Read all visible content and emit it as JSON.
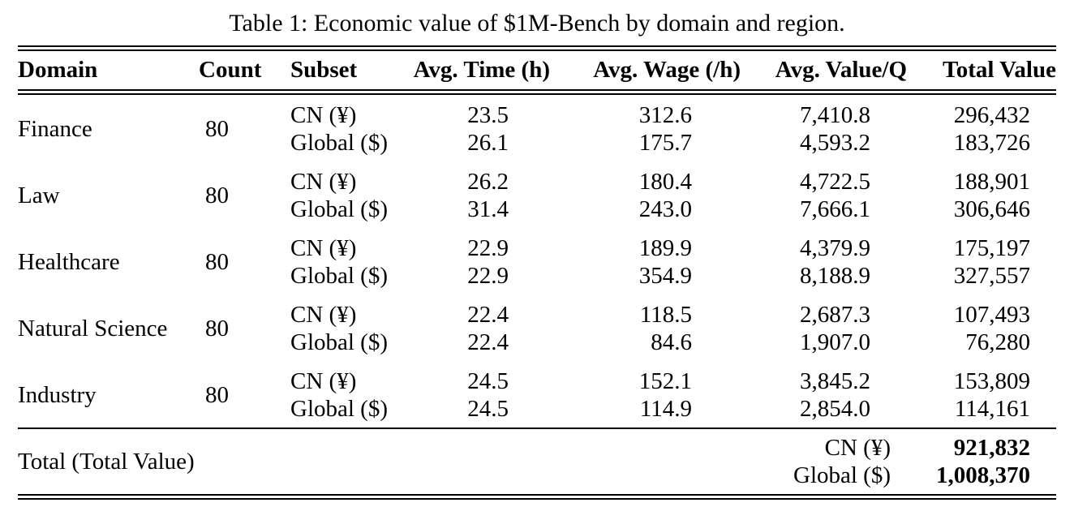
{
  "colors": {
    "text": "#000000",
    "background": "#ffffff",
    "rule": "#000000"
  },
  "title": "Table 1: Economic value of $1M-Bench by domain and region.",
  "columns": [
    "Domain",
    "Count",
    "Subset",
    "Avg. Time (h)",
    "Avg. Wage (/h)",
    "Avg. Value/Q",
    "Total Value"
  ],
  "domains": [
    {
      "name": "Finance",
      "count": "80",
      "subsets": [
        {
          "subset": "CN (¥)",
          "time": "23.5",
          "wage": "312.6",
          "value_q": "7,410.8",
          "total": "296,432"
        },
        {
          "subset": "Global ($)",
          "time": "26.1",
          "wage": "175.7",
          "value_q": "4,593.2",
          "total": "183,726"
        }
      ]
    },
    {
      "name": "Law",
      "count": "80",
      "subsets": [
        {
          "subset": "CN (¥)",
          "time": "26.2",
          "wage": "180.4",
          "value_q": "4,722.5",
          "total": "188,901"
        },
        {
          "subset": "Global ($)",
          "time": "31.4",
          "wage": "243.0",
          "value_q": "7,666.1",
          "total": "306,646"
        }
      ]
    },
    {
      "name": "Healthcare",
      "count": "80",
      "subsets": [
        {
          "subset": "CN (¥)",
          "time": "22.9",
          "wage": "189.9",
          "value_q": "4,379.9",
          "total": "175,197"
        },
        {
          "subset": "Global ($)",
          "time": "22.9",
          "wage": "354.9",
          "value_q": "8,188.9",
          "total": "327,557"
        }
      ]
    },
    {
      "name": "Natural Science",
      "count": "80",
      "subsets": [
        {
          "subset": "CN (¥)",
          "time": "22.4",
          "wage": "118.5",
          "value_q": "2,687.3",
          "total": "107,493"
        },
        {
          "subset": "Global ($)",
          "time": "22.4",
          "wage": "84.6",
          "value_q": "1,907.0",
          "total": "76,280"
        }
      ]
    },
    {
      "name": "Industry",
      "count": "80",
      "subsets": [
        {
          "subset": "CN (¥)",
          "time": "24.5",
          "wage": "152.1",
          "value_q": "3,845.2",
          "total": "153,809"
        },
        {
          "subset": "Global ($)",
          "time": "24.5",
          "wage": "114.9",
          "value_q": "2,854.0",
          "total": "114,161"
        }
      ]
    }
  ],
  "total_row": {
    "label": "Total (Total Value)",
    "entries": [
      {
        "subset": "CN (¥)",
        "value": "921,832"
      },
      {
        "subset": "Global ($)",
        "value": "1,008,370"
      }
    ]
  }
}
